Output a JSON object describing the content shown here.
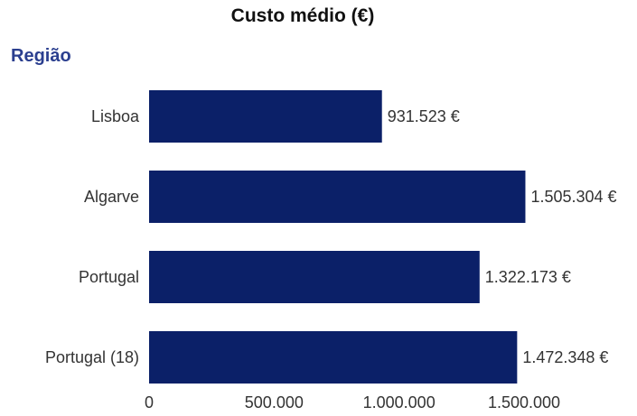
{
  "chart_data": {
    "type": "bar",
    "orientation": "horizontal",
    "title": "Custo médio (€)",
    "ylabel": "Região",
    "xlabel": "",
    "categories": [
      "Lisboa",
      "Algarve",
      "Portugal",
      "Portugal (18)"
    ],
    "values": [
      931523,
      1505304,
      1322173,
      1472348
    ],
    "value_labels": [
      "931.523 €",
      "1.505.304 €",
      "1.322.173 €",
      "1.472.348 €"
    ],
    "x_ticks": [
      0,
      500000,
      1000000,
      1500000
    ],
    "x_tick_labels": [
      "0",
      "500.000",
      "1.000.000",
      "1.500.000"
    ],
    "xlim": [
      0,
      1500000
    ],
    "grid": false,
    "legend": "none",
    "bar_color": "#0b2068",
    "title_color": "#111111",
    "group_label_color": "#2b3f8f"
  }
}
